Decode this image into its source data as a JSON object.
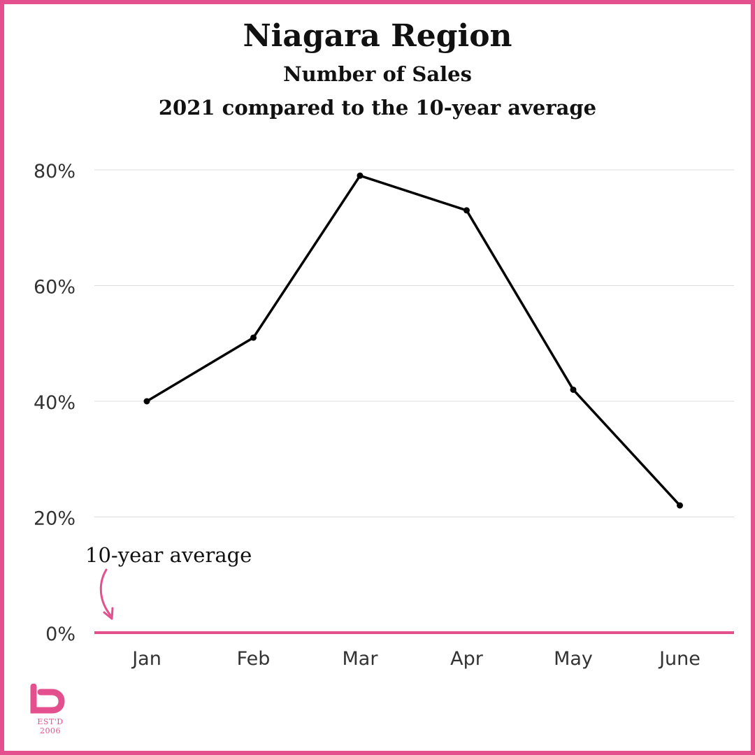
{
  "chart_data": {
    "type": "line",
    "title": "Niagara Region",
    "subtitle_1": "Number of Sales",
    "subtitle_2": "2021 compared to the 10-year average",
    "categories": [
      "Jan",
      "Feb",
      "Mar",
      "Apr",
      "May",
      "June"
    ],
    "series": [
      {
        "values": [
          40,
          51,
          79,
          73,
          42,
          22
        ]
      }
    ],
    "y_ticks": [
      "0%",
      "20%",
      "40%",
      "60%",
      "80%"
    ],
    "y_tick_values": [
      0,
      20,
      40,
      60,
      80
    ],
    "ylim": [
      0,
      80
    ],
    "grid": true,
    "baseline_annotation": "10-year average",
    "colors": {
      "line": "#000000",
      "baseline": "#e4508e",
      "grid": "#dcdcdc",
      "frame": "#e4508e"
    }
  },
  "logo": {
    "text": "EST'D 2006",
    "icon": "brand-b-icon"
  }
}
